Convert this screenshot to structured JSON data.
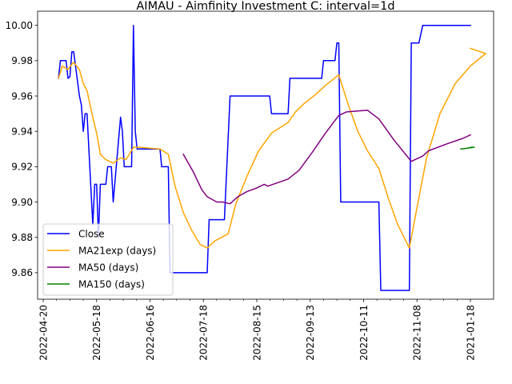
{
  "chart_data": {
    "type": "line",
    "title": "AIMAU - Aimfinity Investment C: interval=1d",
    "xlabel": "",
    "ylabel": "",
    "ylim": [
      9.845,
      10.008
    ],
    "x_tick_labels": [
      "2022-04-20",
      "2022-05-18",
      "2022-06-16",
      "2022-07-18",
      "2022-08-15",
      "2022-09-13",
      "2022-10-11",
      "2022-11-08",
      "2021-01-18"
    ],
    "y_ticks": [
      9.86,
      9.88,
      9.9,
      9.92,
      9.94,
      9.96,
      9.98,
      10.0
    ],
    "y_tick_labels": [
      "9.86",
      "9.88",
      "9.90",
      "9.92",
      "9.94",
      "9.96",
      "9.98",
      "10.00"
    ],
    "grid": false,
    "legend_position": "lower left",
    "series": [
      {
        "name": "Close",
        "color": "#0000ff",
        "points": [
          [
            "2022-04-28",
            9.97
          ],
          [
            "2022-04-29",
            9.98
          ],
          [
            "2022-05-02",
            9.98
          ],
          [
            "2022-05-03",
            9.97
          ],
          [
            "2022-05-04",
            9.971
          ],
          [
            "2022-05-05",
            9.985
          ],
          [
            "2022-05-06",
            9.985
          ],
          [
            "2022-05-09",
            9.96
          ],
          [
            "2022-05-10",
            9.955
          ],
          [
            "2022-05-11",
            9.94
          ],
          [
            "2022-05-12",
            9.95
          ],
          [
            "2022-05-13",
            9.95
          ],
          [
            "2022-05-16",
            9.887
          ],
          [
            "2022-05-17",
            9.91
          ],
          [
            "2022-05-18",
            9.91
          ],
          [
            "2022-05-19",
            9.88
          ],
          [
            "2022-05-20",
            9.91
          ],
          [
            "2022-05-23",
            9.91
          ],
          [
            "2022-05-24",
            9.92
          ],
          [
            "2022-05-25",
            9.92
          ],
          [
            "2022-05-26",
            9.92
          ],
          [
            "2022-05-27",
            9.9
          ],
          [
            "2022-05-31",
            9.948
          ],
          [
            "2022-06-01",
            9.94
          ],
          [
            "2022-06-02",
            9.92
          ],
          [
            "2022-06-03",
            9.92
          ],
          [
            "2022-06-06",
            9.92
          ],
          [
            "2022-06-07",
            10.0
          ],
          [
            "2022-06-08",
            9.94
          ],
          [
            "2022-06-09",
            9.93
          ],
          [
            "2022-06-10",
            9.93
          ],
          [
            "2022-06-22",
            9.93
          ],
          [
            "2022-06-23",
            9.92
          ],
          [
            "2022-06-27",
            9.92
          ],
          [
            "2022-06-28",
            9.86
          ],
          [
            "2022-07-20",
            9.86
          ],
          [
            "2022-07-21",
            9.89
          ],
          [
            "2022-07-29",
            9.89
          ],
          [
            "2022-08-01",
            9.96
          ],
          [
            "2022-08-22",
            9.96
          ],
          [
            "2022-08-23",
            9.95
          ],
          [
            "2022-09-01",
            9.95
          ],
          [
            "2022-09-02",
            9.97
          ],
          [
            "2022-09-19",
            9.97
          ],
          [
            "2022-09-20",
            9.98
          ],
          [
            "2022-09-26",
            9.98
          ],
          [
            "2022-09-27",
            9.99
          ],
          [
            "2022-09-28",
            9.99
          ],
          [
            "2022-09-29",
            9.9
          ],
          [
            "2022-10-19",
            9.9
          ],
          [
            "2022-10-20",
            9.85
          ],
          [
            "2022-11-04",
            9.85
          ],
          [
            "2022-11-05",
            9.99
          ],
          [
            "2022-11-09",
            9.99
          ],
          [
            "2022-11-11",
            10.0
          ],
          [
            "2021-01-18",
            10.0
          ]
        ]
      },
      {
        "name": "MA21exp (days)",
        "color": "#ffa500",
        "points": [
          [
            "2022-04-28",
            9.97
          ],
          [
            "2022-04-30",
            9.977
          ],
          [
            "2022-05-03",
            9.975
          ],
          [
            "2022-05-05",
            9.978
          ],
          [
            "2022-05-06",
            9.979
          ],
          [
            "2022-05-09",
            9.975
          ],
          [
            "2022-05-11",
            9.967
          ],
          [
            "2022-05-13",
            9.963
          ],
          [
            "2022-05-16",
            9.948
          ],
          [
            "2022-05-18",
            9.939
          ],
          [
            "2022-05-20",
            9.927
          ],
          [
            "2022-05-23",
            9.924
          ],
          [
            "2022-05-27",
            9.922
          ],
          [
            "2022-05-31",
            9.925
          ],
          [
            "2022-06-03",
            9.924
          ],
          [
            "2022-06-07",
            9.931
          ],
          [
            "2022-06-10",
            9.931
          ],
          [
            "2022-06-22",
            9.93
          ],
          [
            "2022-06-27",
            9.927
          ],
          [
            "2022-07-01",
            9.909
          ],
          [
            "2022-07-06",
            9.894
          ],
          [
            "2022-07-11",
            9.884
          ],
          [
            "2022-07-16",
            9.876
          ],
          [
            "2022-07-20",
            9.874
          ],
          [
            "2022-07-24",
            9.878
          ],
          [
            "2022-07-31",
            9.882
          ],
          [
            "2022-08-04",
            9.899
          ],
          [
            "2022-08-10",
            9.915
          ],
          [
            "2022-08-16",
            9.929
          ],
          [
            "2022-08-23",
            9.939
          ],
          [
            "2022-09-01",
            9.945
          ],
          [
            "2022-09-05",
            9.951
          ],
          [
            "2022-09-10",
            9.956
          ],
          [
            "2022-09-16",
            9.961
          ],
          [
            "2022-09-21",
            9.966
          ],
          [
            "2022-09-28",
            9.972
          ],
          [
            "2022-10-03",
            9.955
          ],
          [
            "2022-10-08",
            9.94
          ],
          [
            "2022-10-13",
            9.929
          ],
          [
            "2022-10-19",
            9.919
          ],
          [
            "2022-10-24",
            9.902
          ],
          [
            "2022-10-29",
            9.887
          ],
          [
            "2022-11-04",
            9.874
          ],
          [
            "2022-11-08",
            9.897
          ],
          [
            "2022-11-13",
            9.925
          ],
          [
            "2022-11-20",
            9.95
          ],
          [
            "2022-11-28",
            9.967
          ],
          [
            "2022-12-06",
            9.977
          ],
          [
            "2022-12-14",
            9.984
          ],
          [
            "2021-01-18",
            9.987
          ]
        ]
      },
      {
        "name": "MA50 (days)",
        "color": "#800080",
        "points": [
          [
            "2022-07-06",
            9.927
          ],
          [
            "2022-07-12",
            9.917
          ],
          [
            "2022-07-17",
            9.907
          ],
          [
            "2022-07-20",
            9.903
          ],
          [
            "2022-07-25",
            9.9
          ],
          [
            "2022-07-28",
            9.9
          ],
          [
            "2022-08-01",
            9.899
          ],
          [
            "2022-08-05",
            9.903
          ],
          [
            "2022-08-10",
            9.906
          ],
          [
            "2022-08-15",
            9.908
          ],
          [
            "2022-08-19",
            9.91
          ],
          [
            "2022-08-21",
            9.909
          ],
          [
            "2022-09-01",
            9.913
          ],
          [
            "2022-09-07",
            9.918
          ],
          [
            "2022-09-14",
            9.928
          ],
          [
            "2022-09-21",
            9.939
          ],
          [
            "2022-09-28",
            9.949
          ],
          [
            "2022-10-02",
            9.951
          ],
          [
            "2022-10-13",
            9.952
          ],
          [
            "2022-10-19",
            9.947
          ],
          [
            "2022-10-27",
            9.935
          ],
          [
            "2022-11-05",
            9.923
          ],
          [
            "2022-11-11",
            9.926
          ],
          [
            "2022-11-14",
            9.929
          ],
          [
            "2022-11-24",
            9.933
          ],
          [
            "2022-12-02",
            9.936
          ],
          [
            "2021-01-18",
            9.938
          ]
        ]
      },
      {
        "name": "MA150 (days)",
        "color": "#008000",
        "points": [
          [
            "2022-12-01",
            9.93
          ],
          [
            "2022-12-08",
            9.931
          ],
          [
            "2021-01-18",
            9.931
          ]
        ]
      }
    ]
  }
}
